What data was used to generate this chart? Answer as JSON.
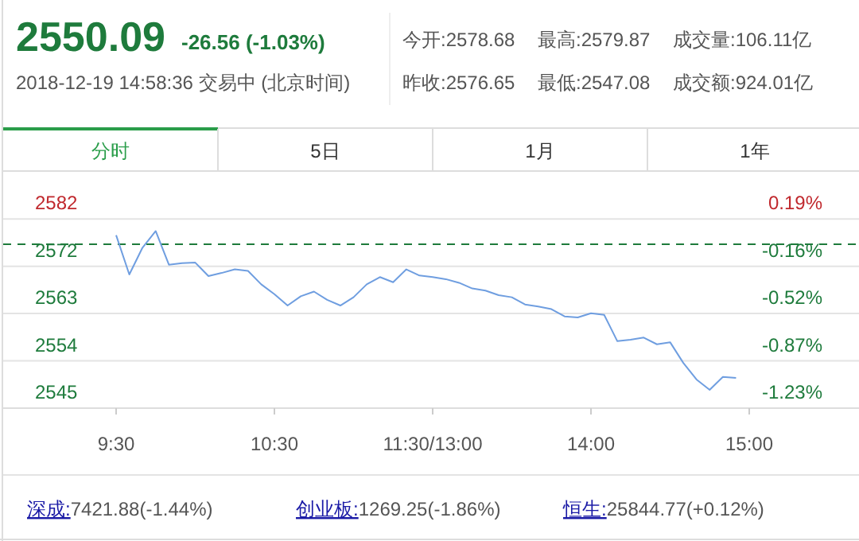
{
  "chart_data": {
    "type": "line",
    "title": "2550.09",
    "subtitle": "-26.56 (-1.03%)",
    "annotations": [
      "2018-12-19 14:58:36 交易中 (北京时间)",
      "今开:2578.68",
      "最高:2579.87",
      "成交量:106.11亿",
      "昨收:2576.65",
      "最低:2547.08",
      "成交额:924.01亿",
      "分时",
      "5日",
      "1月",
      "1年",
      "深成:",
      "7421.88(-1.44%)",
      "创业板:",
      "1269.25(-1.86%)",
      "恒生:",
      "25844.77(+0.12%)"
    ],
    "categories": [
      "9:30",
      null,
      null,
      null,
      null,
      null,
      null,
      null,
      null,
      null,
      null,
      null,
      "10:30",
      null,
      null,
      null,
      null,
      null,
      null,
      null,
      null,
      null,
      null,
      null,
      "11:30/13:00",
      null,
      null,
      null,
      null,
      null,
      null,
      null,
      null,
      null,
      null,
      null,
      "14:00",
      null,
      null,
      null,
      null,
      null,
      null,
      null,
      null,
      null,
      null,
      null,
      "15:00"
    ],
    "ylim": [
      2544.95,
      2581.55
    ],
    "yticks": [
      {
        "value": 2581.55,
        "label": "2582"
      },
      {
        "value": 2572.4,
        "label": "2572"
      },
      {
        "value": 2563.25,
        "label": "2563"
      },
      {
        "value": 2554.1,
        "label": "2554"
      },
      {
        "value": 2544.95,
        "label": "2545"
      }
    ],
    "y2lim": [
      -1.23,
      0.19
    ],
    "y2ticks": [
      {
        "value": 0.19,
        "label": "0.19%"
      },
      {
        "value": -0.165,
        "label": "-0.16%"
      },
      {
        "value": -0.52,
        "label": "-0.52%"
      },
      {
        "value": -0.875,
        "label": "-0.87%"
      },
      {
        "value": -1.23,
        "label": "-1.23%"
      }
    ],
    "grid": "y",
    "line_style": "solid",
    "ref_lines": [
      {
        "axis": "y",
        "value": 2576.65,
        "color": "#1e7b3c",
        "line_style": "dashed"
      }
    ],
    "series": [
      {
        "color": "#6f9ee0",
        "values": [
          2578.4,
          2570.8,
          2576.0,
          2579.2,
          2572.7,
          2573.0,
          2573.1,
          2570.5,
          2571.1,
          2571.8,
          2571.5,
          2568.9,
          2567.0,
          2564.8,
          2566.6,
          2567.5,
          2565.9,
          2564.8,
          2566.4,
          2568.9,
          2570.3,
          2569.3,
          2571.8,
          2570.6,
          2570.3,
          2569.9,
          2569.2,
          2568.1,
          2567.7,
          2566.8,
          2566.4,
          2565.0,
          2564.6,
          2564.1,
          2562.7,
          2562.5,
          2563.3,
          2563.0,
          2557.9,
          2558.2,
          2558.6,
          2557.3,
          2557.7,
          2553.7,
          2550.5,
          2548.5,
          2551.0,
          2550.8,
          null
        ]
      }
    ]
  }
}
